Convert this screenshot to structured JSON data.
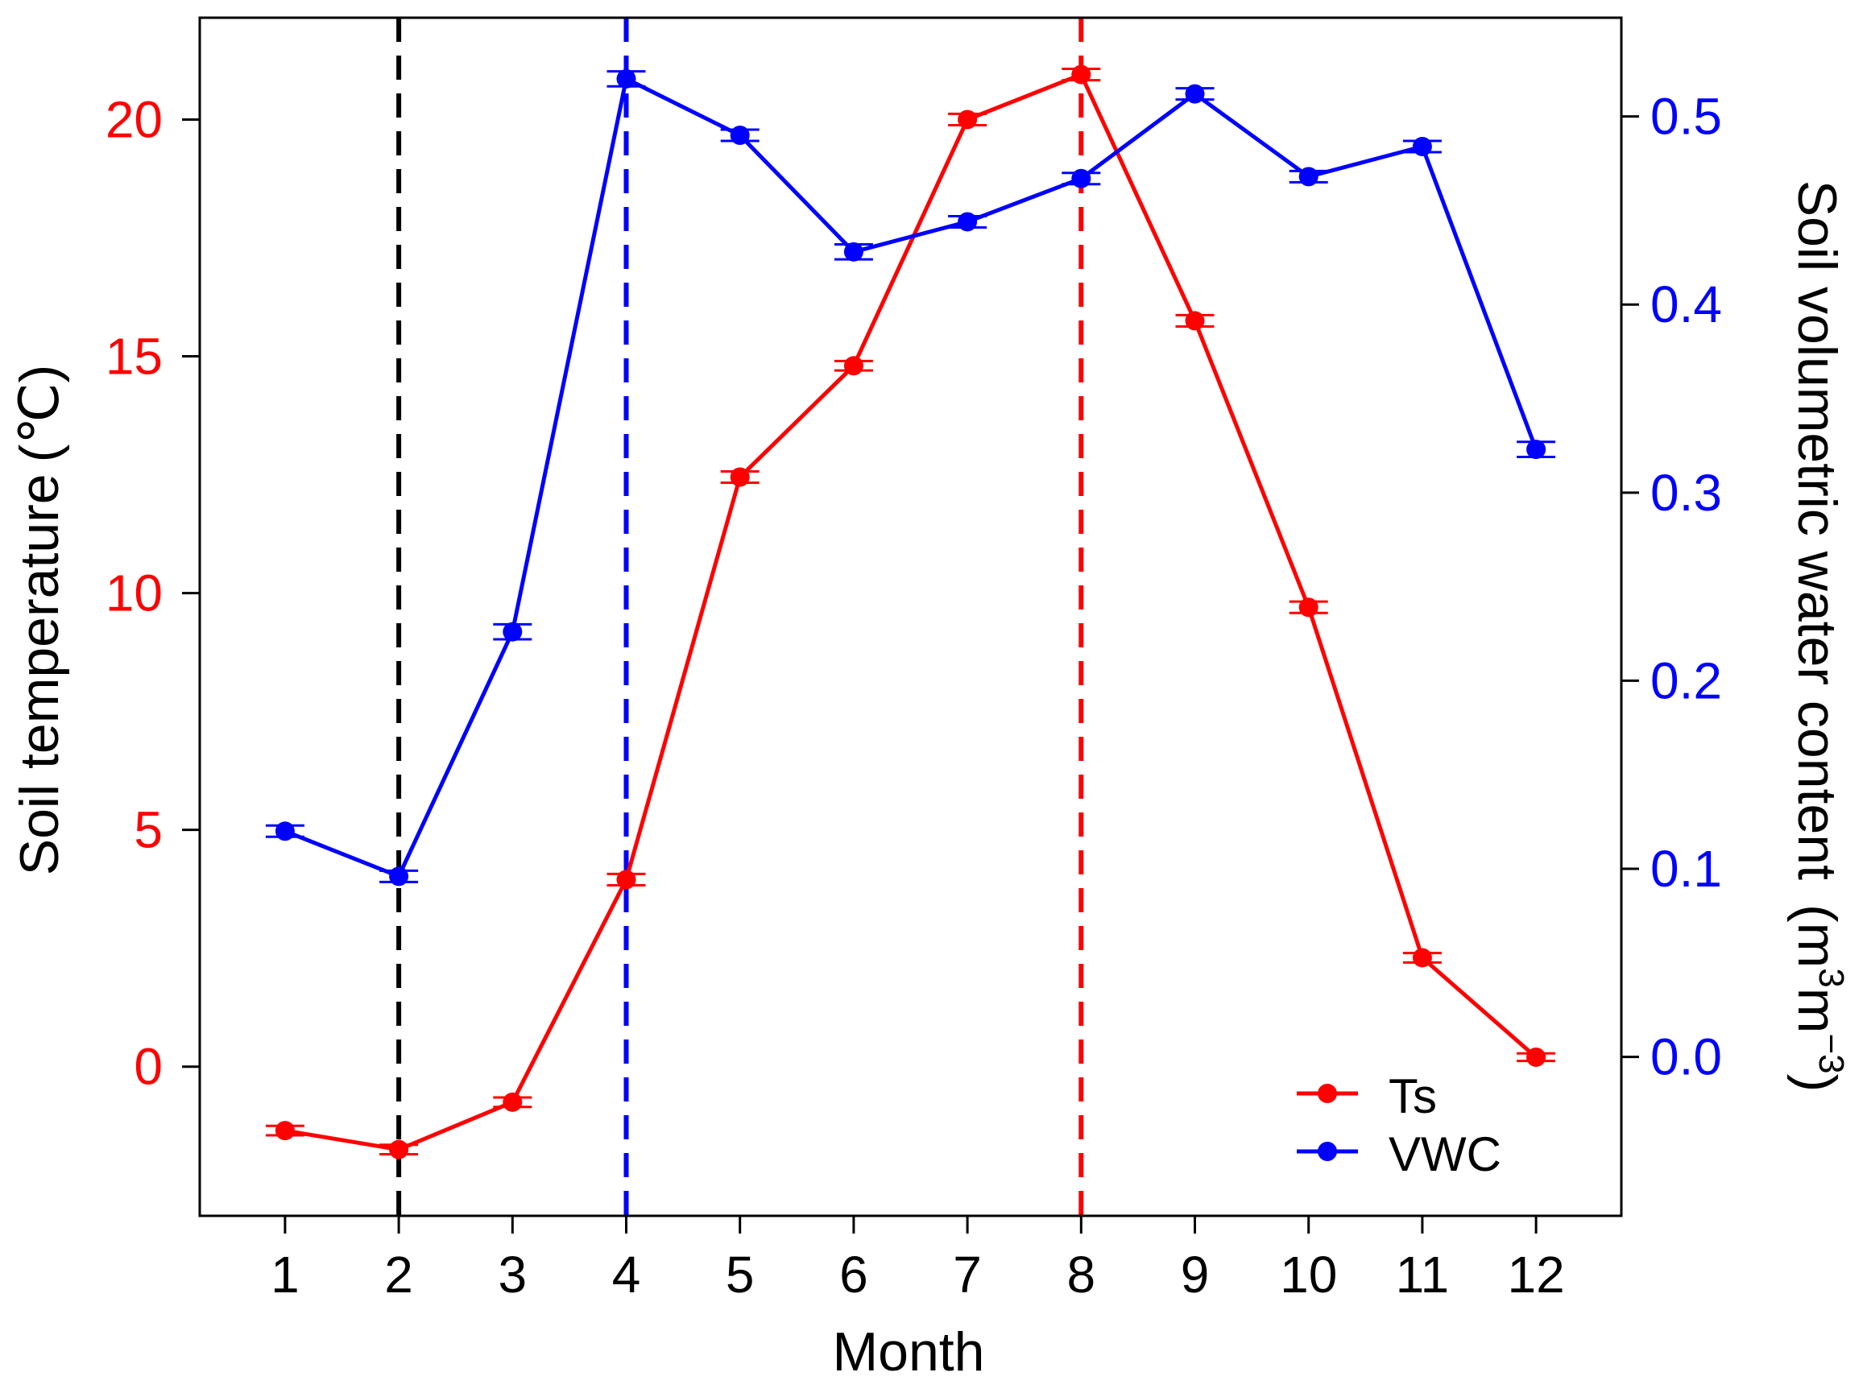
{
  "chart_data": {
    "type": "line",
    "xlabel": "Month",
    "ylabel_left": "Soil temperature",
    "ylabel_left_unit": "(℃)",
    "ylabel_right": "Soil volumetric water content",
    "ylabel_right_unit_prefix": "(m",
    "ylabel_right_unit_sup1": "3",
    "ylabel_right_unit_mid": "m",
    "ylabel_right_unit_sup2": "−3",
    "ylabel_right_unit_suffix": ")",
    "x": [
      1,
      2,
      3,
      4,
      5,
      6,
      7,
      8,
      9,
      10,
      11,
      12
    ],
    "x_tick_labels": [
      "1",
      "2",
      "3",
      "4",
      "5",
      "6",
      "7",
      "8",
      "9",
      "10",
      "11",
      "12"
    ],
    "xlim": [
      0.25,
      12.75
    ],
    "ylim_left": [
      -3.15,
      22.15
    ],
    "ylim_right": [
      -0.0845,
      0.5525
    ],
    "y_left_ticks": [
      0,
      5,
      10,
      15,
      20
    ],
    "y_left_tick_labels": [
      "0",
      "5",
      "10",
      "15",
      "20"
    ],
    "y_right_ticks": [
      0.0,
      0.1,
      0.2,
      0.3,
      0.4,
      0.5
    ],
    "y_right_tick_labels": [
      "0.0",
      "0.1",
      "0.2",
      "0.3",
      "0.4",
      "0.5"
    ],
    "series": [
      {
        "name": "Ts",
        "axis": "left",
        "color": "#ff0000",
        "values": [
          -1.35,
          -1.75,
          -0.75,
          3.95,
          12.45,
          14.8,
          20.0,
          20.95,
          15.75,
          9.7,
          2.3,
          0.2
        ],
        "errors": [
          0.1,
          0.1,
          0.1,
          0.12,
          0.12,
          0.1,
          0.12,
          0.12,
          0.12,
          0.12,
          0.1,
          0.08
        ]
      },
      {
        "name": "VWC",
        "axis": "right",
        "color": "#0000ff",
        "values": [
          0.12,
          0.096,
          0.226,
          0.52,
          0.49,
          0.428,
          0.444,
          0.467,
          0.512,
          0.468,
          0.484,
          0.323
        ],
        "errors": [
          0.003,
          0.003,
          0.004,
          0.004,
          0.003,
          0.004,
          0.003,
          0.003,
          0.003,
          0.003,
          0.003,
          0.004
        ]
      }
    ],
    "vertical_lines": [
      {
        "x": 2,
        "color": "#000000",
        "style": "dashed"
      },
      {
        "x": 4,
        "color": "#0000ff",
        "style": "dashed"
      },
      {
        "x": 8,
        "color": "#ff0000",
        "style": "dashed"
      }
    ],
    "legend": {
      "position": "bottom-right",
      "entries": [
        {
          "label": "Ts",
          "color": "#ff0000"
        },
        {
          "label": "VWC",
          "color": "#0000ff"
        }
      ]
    },
    "colors": {
      "left_axis_text": "#ff0000",
      "right_axis_text": "#0000ff",
      "frame": "#000000"
    }
  }
}
